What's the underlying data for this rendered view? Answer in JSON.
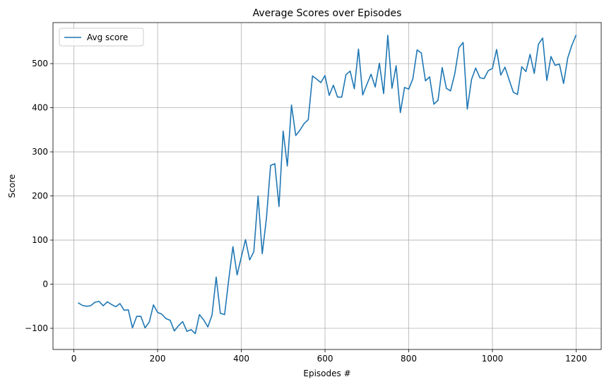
{
  "chart_data": {
    "type": "line",
    "title": "Average Scores over Episodes",
    "xlabel": "Episodes #",
    "ylabel": "Score",
    "xlim": [
      -50,
      1260
    ],
    "ylim": [
      -148,
      593
    ],
    "xticks": [
      0,
      200,
      400,
      600,
      800,
      1000,
      1200
    ],
    "yticks": [
      -100,
      0,
      100,
      200,
      300,
      400,
      500
    ],
    "grid": true,
    "legend": "upper left",
    "series": [
      {
        "name": "Avg score",
        "color": "#1f77b4",
        "x": [
          10,
          20,
          30,
          40,
          50,
          60,
          70,
          80,
          90,
          100,
          110,
          120,
          130,
          140,
          150,
          160,
          170,
          180,
          190,
          200,
          210,
          220,
          230,
          240,
          250,
          260,
          270,
          280,
          290,
          300,
          310,
          320,
          330,
          340,
          350,
          360,
          370,
          380,
          390,
          400,
          410,
          420,
          430,
          440,
          450,
          460,
          470,
          480,
          490,
          500,
          510,
          520,
          530,
          540,
          550,
          560,
          570,
          580,
          590,
          600,
          610,
          620,
          630,
          640,
          650,
          660,
          670,
          680,
          690,
          700,
          710,
          720,
          730,
          740,
          750,
          760,
          770,
          780,
          790,
          800,
          810,
          820,
          830,
          840,
          850,
          860,
          870,
          880,
          890,
          900,
          910,
          920,
          930,
          940,
          950,
          960,
          970,
          980,
          990,
          1000,
          1010,
          1020,
          1030,
          1040,
          1050,
          1060,
          1070,
          1080,
          1090,
          1100,
          1110,
          1120,
          1130,
          1140,
          1150,
          1160,
          1170,
          1180,
          1190,
          1200
        ],
        "values": [
          -42,
          -48,
          -50,
          -49,
          -41,
          -39,
          -49,
          -40,
          -46,
          -51,
          -44,
          -59,
          -58,
          -99,
          -73,
          -73,
          -99,
          -86,
          -47,
          -64,
          -68,
          -78,
          -82,
          -106,
          -94,
          -85,
          -107,
          -103,
          -112,
          -69,
          -81,
          -97,
          -70,
          16,
          -66,
          -69,
          11,
          85,
          21,
          62,
          101,
          55,
          74,
          200,
          69,
          149,
          269,
          273,
          176,
          347,
          268,
          406,
          337,
          349,
          364,
          373,
          472,
          465,
          457,
          473,
          428,
          451,
          424,
          424,
          475,
          483,
          443,
          533,
          429,
          453,
          476,
          447,
          501,
          432,
          564,
          444,
          495,
          389,
          446,
          442,
          466,
          531,
          524,
          461,
          470,
          408,
          417,
          491,
          444,
          438,
          477,
          536,
          548,
          397,
          464,
          490,
          468,
          466,
          484,
          489,
          532,
          474,
          492,
          463,
          435,
          430,
          493,
          482,
          521,
          478,
          544,
          558,
          462,
          516,
          496,
          499,
          455,
          513,
          542,
          565
        ]
      }
    ]
  }
}
